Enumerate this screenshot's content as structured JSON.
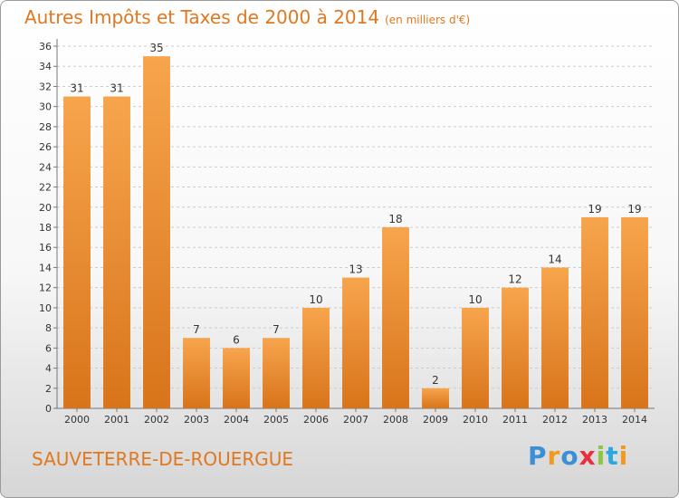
{
  "header": {
    "title": "Autres Impôts et Taxes de 2000 à 2014",
    "unit": "(en milliers d'€)"
  },
  "footer": {
    "commune": "SAUVETERRE-DE-ROUERGUE",
    "logo_text": "Proxiti",
    "logo_colors": [
      "#3a8fd6",
      "#f29a1f",
      "#3a8fd6",
      "#e8313d",
      "#8dc63f",
      "#2aa9e0",
      "#f29a1f"
    ]
  },
  "colors": {
    "accent": "#e07820",
    "bar_top": "#f7a54d",
    "bar_bottom": "#d8741a",
    "grid": "#cccccc"
  },
  "chart_data": {
    "type": "bar",
    "categories": [
      "2000",
      "2001",
      "2002",
      "2003",
      "2004",
      "2005",
      "2006",
      "2007",
      "2008",
      "2009",
      "2010",
      "2011",
      "2012",
      "2013",
      "2014"
    ],
    "values": [
      31,
      31,
      35,
      7,
      6,
      7,
      10,
      13,
      18,
      2,
      10,
      12,
      14,
      19,
      19
    ],
    "ylim": [
      0,
      36
    ],
    "yticks": [
      0,
      2,
      4,
      6,
      8,
      10,
      12,
      14,
      16,
      18,
      20,
      22,
      24,
      26,
      28,
      30,
      32,
      34,
      36
    ],
    "grid": "horizontal dashed",
    "data_labels": true
  }
}
